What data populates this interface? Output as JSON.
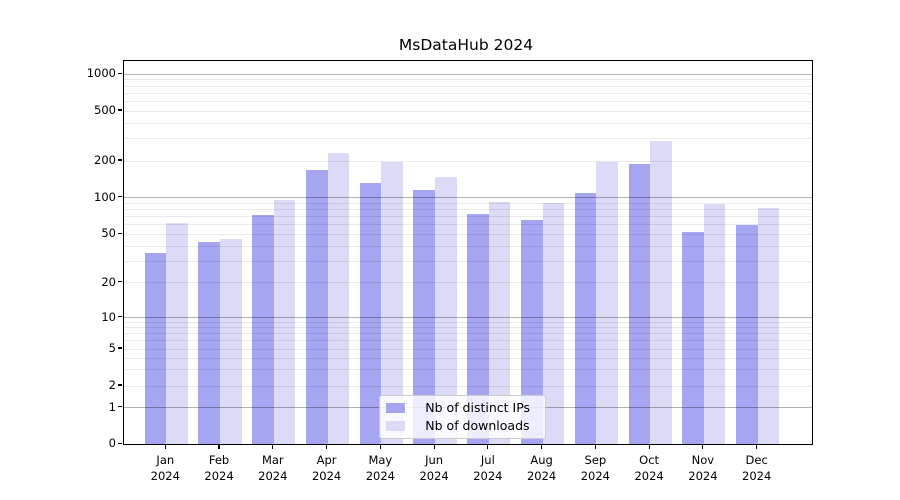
{
  "chart_data": {
    "type": "bar",
    "title": "MsDataHub 2024",
    "categories": [
      "Jan",
      "Feb",
      "Mar",
      "Apr",
      "May",
      "Jun",
      "Jul",
      "Aug",
      "Sep",
      "Oct",
      "Nov",
      "Dec"
    ],
    "category_year": "2024",
    "series": [
      {
        "name": "Nb of distinct IPs",
        "color": "#a5a5f2",
        "values": [
          35,
          43,
          72,
          170,
          131,
          115,
          74,
          65,
          110,
          188,
          52,
          60
        ]
      },
      {
        "name": "Nb of downloads",
        "color": "#dbdbf8",
        "values": [
          62,
          46,
          96,
          230,
          198,
          149,
          92,
          91,
          198,
          288,
          89,
          82
        ]
      }
    ],
    "xlabel": "",
    "ylabel": "",
    "y_axis": {
      "scale": "symlog",
      "tick_values": [
        0,
        1,
        2,
        5,
        10,
        20,
        50,
        100,
        200,
        500,
        1000
      ],
      "tick_labels": [
        "0",
        "1",
        "2",
        "5",
        "10",
        "20",
        "50",
        "100",
        "200",
        "500",
        "1000"
      ],
      "ylim": [
        0,
        1300
      ]
    },
    "grid": "on",
    "legend_position": "lower center"
  }
}
